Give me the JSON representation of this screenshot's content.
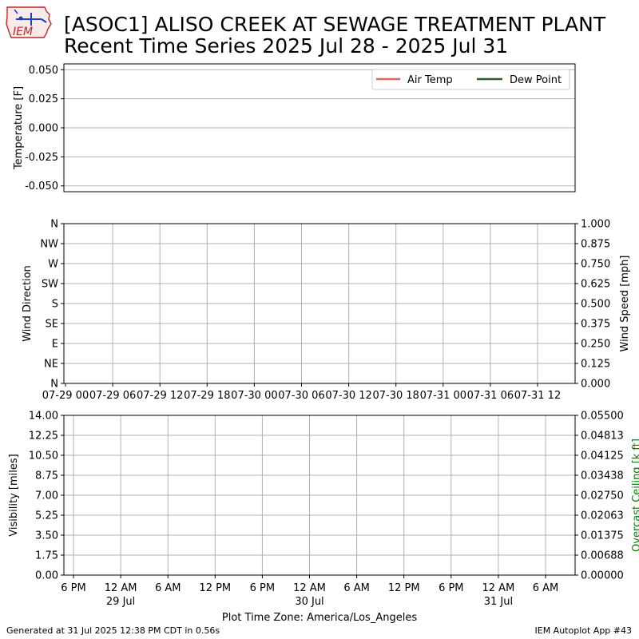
{
  "header": {
    "title_line1": "[ASOC1] ALISO CREEK AT SEWAGE TREATMENT PLANT",
    "title_line2": "Recent Time Series 2025 Jul 28 - 2025 Jul 31",
    "logo_text": "IEM"
  },
  "footer": {
    "generated": "Generated at 31 Jul 2025 12:38 PM CDT in 0.56s",
    "app": "IEM Autoplot App #43"
  },
  "colors": {
    "air_temp": "#e06666",
    "dew_point": "#2e5e2e",
    "ceiling_label": "#008000",
    "grid": "#b0b0b0"
  },
  "chart_data": [
    {
      "type": "line",
      "panel": "temperature",
      "ylabel": "Temperature [F]",
      "ylim": [
        -0.055,
        0.055
      ],
      "yticks": [
        "0.050",
        "0.025",
        "0.000",
        "-0.025",
        "-0.050"
      ],
      "ytick_values": [
        0.05,
        0.025,
        0.0,
        -0.025,
        -0.05
      ],
      "grid": true,
      "legend": "top-right",
      "series": [
        {
          "name": "Air Temp",
          "values": []
        },
        {
          "name": "Dew Point",
          "values": []
        }
      ]
    },
    {
      "type": "scatter",
      "panel": "wind",
      "ylabel": "Wind Direction",
      "y2label": "Wind Speed [mph]",
      "yticks": [
        "N",
        "NE",
        "E",
        "SE",
        "S",
        "SW",
        "W",
        "NW",
        "N"
      ],
      "y2ticks": [
        "0.000",
        "0.125",
        "0.250",
        "0.375",
        "0.500",
        "0.625",
        "0.750",
        "0.875",
        "1.000"
      ],
      "ylim": [
        0,
        360
      ],
      "y2lim": [
        0,
        1
      ],
      "xticks": [
        "07-29 00",
        "07-29 06",
        "07-29 12",
        "07-29 18",
        "07-30 00",
        "07-30 06",
        "07-30 12",
        "07-30 18",
        "07-31 00",
        "07-31 06",
        "07-31 12"
      ],
      "grid": true,
      "series": []
    },
    {
      "type": "line",
      "panel": "visibility",
      "ylabel": "Visibility [miles]",
      "y2label": "Overcast Ceiling [k ft]",
      "yticks": [
        "0.00",
        "1.75",
        "3.50",
        "5.25",
        "7.00",
        "8.75",
        "10.50",
        "12.25",
        "14.00"
      ],
      "y2ticks": [
        "0.00000",
        "0.00688",
        "0.01375",
        "0.02063",
        "0.02750",
        "0.03438",
        "0.04125",
        "0.04813",
        "0.05500"
      ],
      "ylim": [
        0,
        14
      ],
      "y2lim": [
        0,
        0.055
      ],
      "xticks": [
        {
          "time": "6 PM",
          "date": ""
        },
        {
          "time": "12 AM",
          "date": "29 Jul"
        },
        {
          "time": "6 AM",
          "date": ""
        },
        {
          "time": "12 PM",
          "date": ""
        },
        {
          "time": "6 PM",
          "date": ""
        },
        {
          "time": "12 AM",
          "date": "30 Jul"
        },
        {
          "time": "6 AM",
          "date": ""
        },
        {
          "time": "12 PM",
          "date": ""
        },
        {
          "time": "6 PM",
          "date": ""
        },
        {
          "time": "12 AM",
          "date": "31 Jul"
        },
        {
          "time": "6 AM",
          "date": ""
        }
      ],
      "xlabel": "Plot Time Zone: America/Los_Angeles",
      "grid": true,
      "series": []
    }
  ]
}
